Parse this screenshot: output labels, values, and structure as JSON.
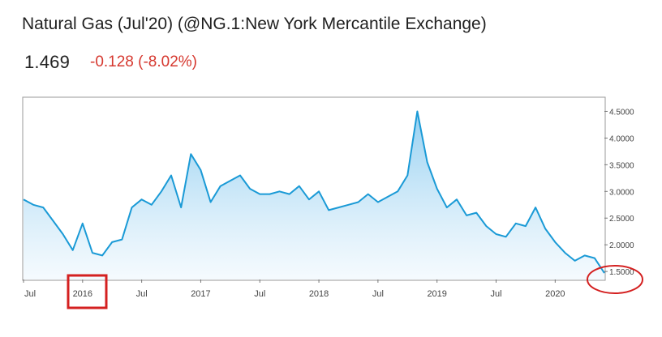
{
  "header": {
    "title": "Natural Gas (Jul'20) (@NG.1:New York Mercantile Exchange)",
    "last_price": "1.469",
    "change": "-0.128 (-8.02%)"
  },
  "colors": {
    "line": "#1a9ad6",
    "change_negative": "#d6382f",
    "annotation": "#d42020",
    "frame": "#9a9a9a"
  },
  "annotations": [
    {
      "type": "rectangle",
      "target": "2016 x-axis label"
    },
    {
      "type": "ellipse",
      "target": "1.5000 y-axis label"
    }
  ],
  "chart_data": {
    "type": "area",
    "title": "",
    "xlabel": "",
    "ylabel": "",
    "ylim": [
      1.35,
      4.75
    ],
    "x_range": [
      "2015-07",
      "2020-06"
    ],
    "y_axis_position": "right",
    "grid": false,
    "x_tick_labels": [
      "Jul",
      "2016",
      "Jul",
      "2017",
      "Jul",
      "2018",
      "Jul",
      "2019",
      "Jul",
      "2020"
    ],
    "y_tick_labels": [
      "4.5000",
      "4.0000",
      "3.5000",
      "3.0000",
      "2.5000",
      "2.0000",
      "1.5000"
    ],
    "y_ticks": [
      4.5,
      4.0,
      3.5,
      3.0,
      2.5,
      2.0,
      1.5
    ],
    "series": [
      {
        "x": [
          "2015-07",
          "2015-08",
          "2015-09",
          "2015-10",
          "2015-11",
          "2015-12",
          "2016-01",
          "2016-02",
          "2016-03",
          "2016-04",
          "2016-05",
          "2016-06",
          "2016-07",
          "2016-08",
          "2016-09",
          "2016-10",
          "2016-11",
          "2016-12",
          "2017-01",
          "2017-02",
          "2017-03",
          "2017-04",
          "2017-05",
          "2017-06",
          "2017-07",
          "2017-08",
          "2017-09",
          "2017-10",
          "2017-11",
          "2017-12",
          "2018-01",
          "2018-02",
          "2018-03",
          "2018-04",
          "2018-05",
          "2018-06",
          "2018-07",
          "2018-08",
          "2018-09",
          "2018-10",
          "2018-11",
          "2018-12",
          "2019-01",
          "2019-02",
          "2019-03",
          "2019-04",
          "2019-05",
          "2019-06",
          "2019-07",
          "2019-08",
          "2019-09",
          "2019-10",
          "2019-11",
          "2019-12",
          "2020-01",
          "2020-02",
          "2020-03",
          "2020-04",
          "2020-05",
          "2020-06"
        ],
        "values": [
          2.85,
          2.75,
          2.7,
          2.45,
          2.2,
          1.9,
          2.4,
          1.85,
          1.8,
          2.05,
          2.1,
          2.7,
          2.85,
          2.75,
          3.0,
          3.3,
          2.7,
          3.7,
          3.4,
          2.8,
          3.1,
          3.2,
          3.3,
          3.05,
          2.95,
          2.95,
          3.0,
          2.95,
          3.1,
          2.85,
          3.0,
          2.65,
          2.7,
          2.75,
          2.8,
          2.95,
          2.8,
          2.9,
          3.0,
          3.3,
          4.5,
          3.55,
          3.05,
          2.7,
          2.85,
          2.55,
          2.6,
          2.35,
          2.2,
          2.15,
          2.4,
          2.35,
          2.7,
          2.3,
          2.05,
          1.85,
          1.7,
          1.8,
          1.75,
          1.47
        ]
      }
    ]
  }
}
